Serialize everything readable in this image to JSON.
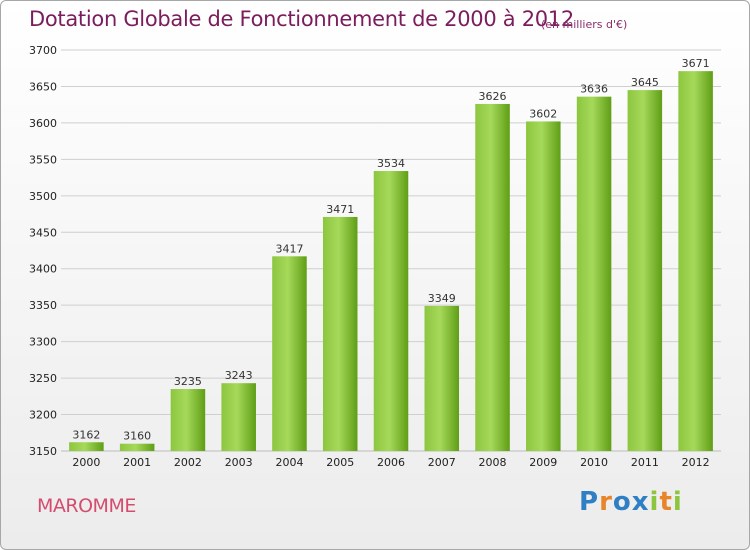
{
  "header": {
    "title": "Dotation Globale de Fonctionnement de 2000 à 2012",
    "unit": "(en milliers d'€)"
  },
  "commune": "MAROMME",
  "logo": {
    "letters": [
      "P",
      "r",
      "o",
      "x",
      "i",
      "t",
      "i"
    ],
    "colors": [
      "#2f7fc4",
      "#e8842a",
      "#2f7fc4",
      "#2f7fc4",
      "#8cc63f",
      "#e8842a",
      "#8cc63f"
    ]
  },
  "chart_data": {
    "type": "bar",
    "categories": [
      "2000",
      "2001",
      "2002",
      "2003",
      "2004",
      "2005",
      "2006",
      "2007",
      "2008",
      "2009",
      "2010",
      "2011",
      "2012"
    ],
    "values": [
      3162,
      3160,
      3235,
      3243,
      3417,
      3471,
      3534,
      3349,
      3626,
      3602,
      3636,
      3645,
      3671
    ],
    "value_labels": [
      "3162",
      "3160",
      "3235",
      "3243",
      "3417",
      "3471",
      "3534",
      "3349",
      "3626",
      "3602",
      "3636",
      "3645",
      "3671"
    ],
    "title": "Dotation Globale de Fonctionnement de 2000 à 2012",
    "xlabel": "",
    "ylabel": "",
    "ylim": [
      3150,
      3700
    ],
    "yticks": [
      "3150",
      "3200",
      "3250",
      "3300",
      "3350",
      "3400",
      "3450",
      "3500",
      "3550",
      "3600",
      "3650",
      "3700"
    ],
    "grid": true,
    "colors": {
      "bar_light": "#a6d95a",
      "bar_dark": "#5f9e16",
      "grid": "#cfcfcf"
    }
  }
}
